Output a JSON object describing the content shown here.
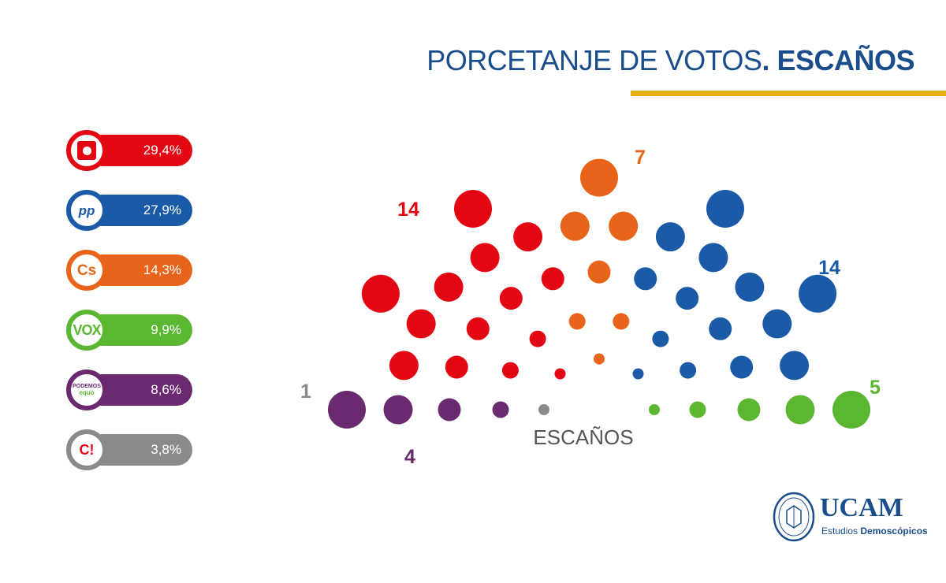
{
  "header": {
    "title_regular": "PORCETANJE DE VOTOS",
    "title_bold": ". ESCAÑOS",
    "rule_color": "#e8b10f"
  },
  "legend": [
    {
      "logo_icon": "psoe-logo-icon",
      "logo_text": "",
      "percent": "29,4%",
      "color": "#e30613"
    },
    {
      "logo_icon": "pp-logo-icon",
      "logo_text": "pp",
      "percent": "27,9%",
      "color": "#1a5aa6"
    },
    {
      "logo_icon": "cs-logo-icon",
      "logo_text": "Cs",
      "percent": "14,3%",
      "color": "#e8641b"
    },
    {
      "logo_icon": "vox-logo-icon",
      "logo_text": "VOX",
      "percent": "9,9%",
      "color": "#5bb632"
    },
    {
      "logo_icon": "podemos-logo-icon",
      "logo_text": "PODEMOS",
      "logo_subtext": "equo",
      "percent": "8,6%",
      "color": "#6b2a6f"
    },
    {
      "logo_icon": "ci-logo-icon",
      "logo_text": "C!",
      "percent": "3,8%",
      "color": "#8a8a8a"
    }
  ],
  "chart_data": {
    "type": "parliament",
    "center_label": "ESCAÑOS",
    "total_seats": 45,
    "order": "left-to-right",
    "series": [
      {
        "seats": 1,
        "label": "1",
        "color": "#8a8a8a"
      },
      {
        "seats": 4,
        "label": "4",
        "color": "#6b2a6f"
      },
      {
        "seats": 14,
        "label": "14",
        "color": "#e30613"
      },
      {
        "seats": 7,
        "label": "7",
        "color": "#e8641b"
      },
      {
        "seats": 14,
        "label": "14",
        "color": "#1a5aa6"
      },
      {
        "seats": 5,
        "label": "5",
        "color": "#5bb632"
      }
    ]
  },
  "branding": {
    "name": "UCAM",
    "subtitle_regular": "Estudios ",
    "subtitle_bold": "Demoscópicos"
  }
}
